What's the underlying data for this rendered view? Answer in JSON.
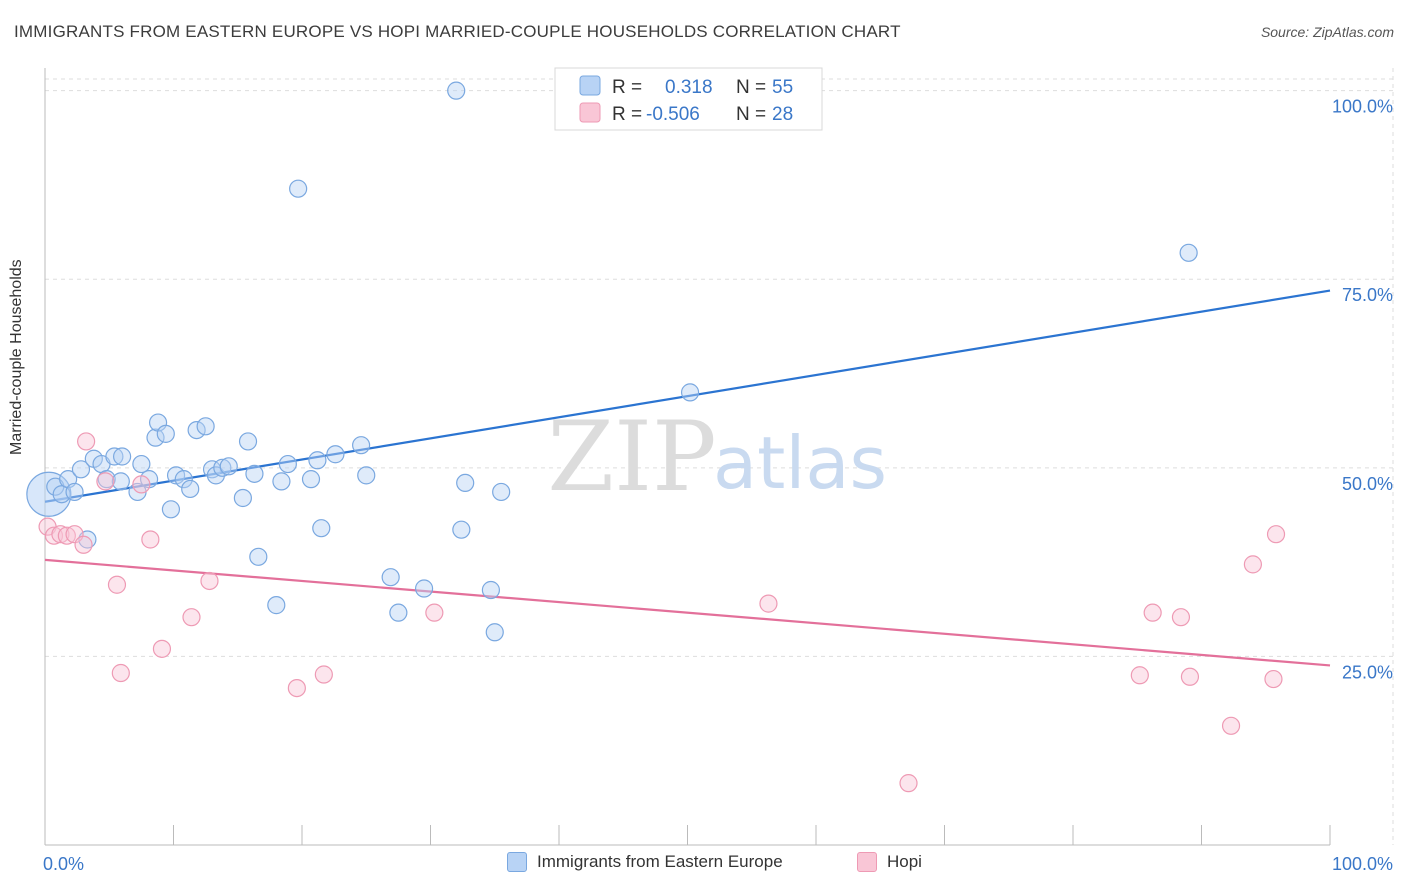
{
  "header": {
    "title": "IMMIGRANTS FROM EASTERN EUROPE VS HOPI MARRIED-COUPLE HOUSEHOLDS CORRELATION CHART",
    "source": "Source: ZipAtlas.com"
  },
  "watermark": {
    "zip": "ZIP",
    "atlas": "atlas"
  },
  "legend": {
    "rows": [
      {
        "r_label": "R =",
        "r_value": "0.318",
        "n_label": "N =",
        "n_value": "55"
      },
      {
        "r_label": "R =",
        "r_value": "-0.506",
        "n_label": "N =",
        "n_value": "28"
      }
    ]
  },
  "colors": {
    "blue_fill": "#b8d3f5",
    "blue_stroke": "#7aa8e0",
    "blue_line": "#2b74d1",
    "pink_fill": "#f9c6d6",
    "pink_stroke": "#ee9ab4",
    "pink_line": "#e3709a",
    "value_text": "#3a77c8",
    "grid": "#dddddd"
  },
  "chart_data": {
    "type": "scatter",
    "title": "IMMIGRANTS FROM EASTERN EUROPE VS HOPI MARRIED-COUPLE HOUSEHOLDS CORRELATION CHART",
    "xlabel": "",
    "ylabel": "Married-couple Households",
    "xlim": [
      0,
      100
    ],
    "ylim": [
      0,
      103
    ],
    "x_tick_labels": [
      "0.0%",
      "100.0%"
    ],
    "y_tick_values": [
      25,
      50,
      75,
      100
    ],
    "y_tick_labels": [
      "25.0%",
      "50.0%",
      "75.0%",
      "100.0%"
    ],
    "grid": true,
    "legend_position": "top-center",
    "series": [
      {
        "name": "Immigrants from Eastern Europe",
        "color": "#7aa8e0",
        "R": 0.318,
        "N": 55,
        "trend": {
          "x": [
            0,
            100
          ],
          "y": [
            45.5,
            73.5
          ]
        },
        "points": [
          {
            "x": 0.3,
            "y": 46.5,
            "big": true
          },
          {
            "x": 0.8,
            "y": 47.5
          },
          {
            "x": 1.3,
            "y": 46.5
          },
          {
            "x": 1.8,
            "y": 48.5
          },
          {
            "x": 2.3,
            "y": 46.8
          },
          {
            "x": 2.8,
            "y": 49.8
          },
          {
            "x": 3.3,
            "y": 40.5
          },
          {
            "x": 3.8,
            "y": 51.2
          },
          {
            "x": 4.4,
            "y": 50.5
          },
          {
            "x": 4.8,
            "y": 48.5
          },
          {
            "x": 5.4,
            "y": 51.5
          },
          {
            "x": 5.9,
            "y": 48.2
          },
          {
            "x": 6.0,
            "y": 51.5
          },
          {
            "x": 7.2,
            "y": 46.8
          },
          {
            "x": 7.5,
            "y": 50.5
          },
          {
            "x": 8.1,
            "y": 48.5
          },
          {
            "x": 8.6,
            "y": 54.0
          },
          {
            "x": 8.8,
            "y": 56.0
          },
          {
            "x": 9.4,
            "y": 54.5
          },
          {
            "x": 9.8,
            "y": 44.5
          },
          {
            "x": 10.2,
            "y": 49.0
          },
          {
            "x": 10.8,
            "y": 48.5
          },
          {
            "x": 11.3,
            "y": 47.2
          },
          {
            "x": 11.8,
            "y": 55.0
          },
          {
            "x": 12.5,
            "y": 55.5
          },
          {
            "x": 13.0,
            "y": 49.8
          },
          {
            "x": 13.3,
            "y": 49.0
          },
          {
            "x": 13.8,
            "y": 50.0
          },
          {
            "x": 14.3,
            "y": 50.2
          },
          {
            "x": 15.4,
            "y": 46.0
          },
          {
            "x": 15.8,
            "y": 53.5
          },
          {
            "x": 16.3,
            "y": 49.2
          },
          {
            "x": 16.6,
            "y": 38.2
          },
          {
            "x": 18.0,
            "y": 31.8
          },
          {
            "x": 18.4,
            "y": 48.2
          },
          {
            "x": 18.9,
            "y": 50.5
          },
          {
            "x": 19.7,
            "y": 87.0
          },
          {
            "x": 20.7,
            "y": 48.5
          },
          {
            "x": 21.2,
            "y": 51.0
          },
          {
            "x": 21.5,
            "y": 42.0
          },
          {
            "x": 22.6,
            "y": 51.8
          },
          {
            "x": 24.6,
            "y": 53.0
          },
          {
            "x": 25.0,
            "y": 49.0
          },
          {
            "x": 26.9,
            "y": 35.5
          },
          {
            "x": 27.5,
            "y": 30.8
          },
          {
            "x": 29.5,
            "y": 34.0
          },
          {
            "x": 32.0,
            "y": 100.0
          },
          {
            "x": 32.4,
            "y": 41.8
          },
          {
            "x": 32.7,
            "y": 48.0
          },
          {
            "x": 34.7,
            "y": 33.8
          },
          {
            "x": 35.0,
            "y": 28.2
          },
          {
            "x": 35.5,
            "y": 46.8
          },
          {
            "x": 47.2,
            "y": 100.0
          },
          {
            "x": 50.2,
            "y": 60.0
          },
          {
            "x": 89.0,
            "y": 78.5
          }
        ]
      },
      {
        "name": "Hopi",
        "color": "#ee9ab4",
        "R": -0.506,
        "N": 28,
        "trend": {
          "x": [
            0,
            100
          ],
          "y": [
            37.8,
            23.8
          ]
        },
        "points": [
          {
            "x": 0.2,
            "y": 42.2
          },
          {
            "x": 0.7,
            "y": 41.0
          },
          {
            "x": 1.2,
            "y": 41.2
          },
          {
            "x": 1.7,
            "y": 41.0
          },
          {
            "x": 2.3,
            "y": 41.2
          },
          {
            "x": 3.0,
            "y": 39.8
          },
          {
            "x": 3.2,
            "y": 53.5
          },
          {
            "x": 4.7,
            "y": 48.2
          },
          {
            "x": 5.6,
            "y": 34.5
          },
          {
            "x": 5.9,
            "y": 22.8
          },
          {
            "x": 7.5,
            "y": 47.8
          },
          {
            "x": 8.2,
            "y": 40.5
          },
          {
            "x": 9.1,
            "y": 26.0
          },
          {
            "x": 11.4,
            "y": 30.2
          },
          {
            "x": 12.8,
            "y": 35.0
          },
          {
            "x": 19.6,
            "y": 20.8
          },
          {
            "x": 21.7,
            "y": 22.6
          },
          {
            "x": 30.3,
            "y": 30.8
          },
          {
            "x": 56.3,
            "y": 32.0
          },
          {
            "x": 67.2,
            "y": 8.2
          },
          {
            "x": 85.2,
            "y": 22.5
          },
          {
            "x": 86.2,
            "y": 30.8
          },
          {
            "x": 88.4,
            "y": 30.2
          },
          {
            "x": 89.1,
            "y": 22.3
          },
          {
            "x": 92.3,
            "y": 15.8
          },
          {
            "x": 94.0,
            "y": 37.2
          },
          {
            "x": 95.6,
            "y": 22.0
          },
          {
            "x": 95.8,
            "y": 41.2
          }
        ]
      }
    ]
  }
}
